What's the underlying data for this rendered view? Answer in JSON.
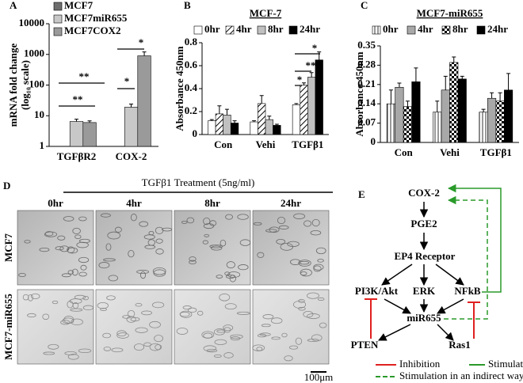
{
  "chart_data": [
    {
      "type": "bar",
      "panel": "A",
      "log_scale": true,
      "ylabel": [
        "mRNA fold change",
        "(log₁₀ scale)"
      ],
      "categories": [
        "TGFβR2",
        "COX-2"
      ],
      "series": [
        {
          "name": "MCF7",
          "color": "#6e6e6e",
          "values": [
            1,
            1
          ],
          "errors": [
            0,
            0
          ]
        },
        {
          "name": "MCF7miR655",
          "color": "#c8c8c8",
          "values": [
            6.5,
            19
          ],
          "errors": [
            1.2,
            5
          ]
        },
        {
          "name": "MCF7COX2",
          "color": "#9a9a9a",
          "values": [
            6,
            900
          ],
          "errors": [
            0.8,
            300
          ]
        }
      ],
      "ylim": [
        1,
        10000
      ],
      "yticks": [
        1,
        10,
        100,
        1000,
        10000
      ],
      "annotations": [
        "**",
        "**",
        "*",
        "*"
      ]
    },
    {
      "type": "bar",
      "panel": "B",
      "title": "MCF-7",
      "ylabel": [
        "Absorbance 450nm"
      ],
      "categories": [
        "Con",
        "Vehi",
        "TGFβ1"
      ],
      "series": [
        {
          "name": "0hr",
          "color": "#ffffff",
          "values": [
            0.12,
            0.11,
            0.26
          ],
          "errors": [
            0.01,
            0.01,
            0.01
          ]
        },
        {
          "name": "4hr",
          "color": "#ffffff",
          "pattern": "hatch",
          "values": [
            0.18,
            0.27,
            0.43
          ],
          "errors": [
            0.07,
            0.07,
            0.02
          ]
        },
        {
          "name": "8hr",
          "color": "#c0c0c0",
          "values": [
            0.17,
            0.13,
            0.5
          ],
          "errors": [
            0.05,
            0.03,
            0.04
          ]
        },
        {
          "name": "24hr",
          "color": "#000000",
          "values": [
            0.1,
            0.08,
            0.65
          ],
          "errors": [
            0.02,
            0.01,
            0.07
          ]
        }
      ],
      "ylim": [
        0,
        0.8
      ],
      "yticks": [
        0,
        0.2,
        0.4,
        0.6,
        0.8
      ],
      "annotations": [
        "*",
        "**",
        "*"
      ]
    },
    {
      "type": "bar",
      "panel": "C",
      "title": "MCF7-miR655",
      "ylabel": [
        "Absorbance 450nm"
      ],
      "categories": [
        "Con",
        "Vehi",
        "TGFβ1"
      ],
      "series": [
        {
          "name": "0hr",
          "color": "#ffffff",
          "pattern": "vstripes",
          "values": [
            0.14,
            0.11,
            0.11
          ],
          "errors": [
            0.05,
            0.04,
            0.01
          ]
        },
        {
          "name": "4hr",
          "color": "#a8a8a8",
          "values": [
            0.2,
            0.19,
            0.16
          ],
          "errors": [
            0.015,
            0.05,
            0.02
          ]
        },
        {
          "name": "8hr",
          "color": "#ffffff",
          "pattern": "checker",
          "values": [
            0.13,
            0.29,
            0.15
          ],
          "errors": [
            0.02,
            0.02,
            0.03
          ]
        },
        {
          "name": "24hr",
          "color": "#000000",
          "values": [
            0.22,
            0.23,
            0.19
          ],
          "errors": [
            0.05,
            0.01,
            0.06
          ]
        }
      ],
      "ylim": [
        0,
        0.35
      ],
      "yticks": [
        0,
        0.07,
        0.14,
        0.21,
        0.28,
        0.35
      ]
    }
  ],
  "micrographs": {
    "panel": "D",
    "treatment": "TGFβ1 Treatment (5ng/ml)",
    "columns": [
      "0hr",
      "4hr",
      "8hr",
      "24hr"
    ],
    "rows": [
      "MCF7",
      "MCF7-miR655"
    ],
    "scale_bar": "100μm"
  },
  "diagram": {
    "panel": "E",
    "nodes": [
      "COX-2",
      "PGE2",
      "EP4 Receptor",
      "PI3K/Akt",
      "ERK",
      "NFkB",
      "miR655",
      "PTEN",
      "Ras1"
    ],
    "legend": [
      "Inhibition",
      "Stimulation",
      "Stimulation in an indirect way"
    ]
  }
}
